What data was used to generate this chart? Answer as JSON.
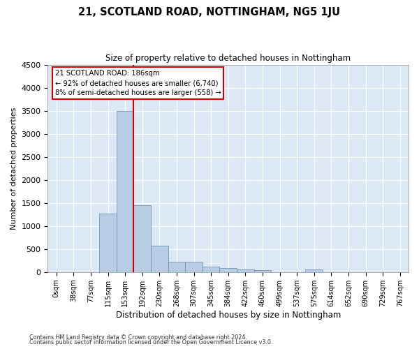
{
  "title": "21, SCOTLAND ROAD, NOTTINGHAM, NG5 1JU",
  "subtitle": "Size of property relative to detached houses in Nottingham",
  "xlabel": "Distribution of detached houses by size in Nottingham",
  "ylabel": "Number of detached properties",
  "categories": [
    "0sqm",
    "38sqm",
    "77sqm",
    "115sqm",
    "153sqm",
    "192sqm",
    "230sqm",
    "268sqm",
    "307sqm",
    "345sqm",
    "384sqm",
    "422sqm",
    "460sqm",
    "499sqm",
    "537sqm",
    "575sqm",
    "614sqm",
    "652sqm",
    "690sqm",
    "729sqm",
    "767sqm"
  ],
  "values": [
    0,
    0,
    0,
    1270,
    3500,
    1450,
    570,
    220,
    220,
    110,
    80,
    60,
    45,
    0,
    0,
    50,
    0,
    0,
    0,
    0,
    0
  ],
  "bar_color": "#b8cce4",
  "bar_edgecolor": "#5a8ab0",
  "vline_color": "#cc0000",
  "annotation_text_line1": "21 SCOTLAND ROAD: 186sqm",
  "annotation_text_line2": "← 92% of detached houses are smaller (6,740)",
  "annotation_text_line3": "8% of semi-detached houses are larger (558) →",
  "ylim": [
    0,
    4500
  ],
  "yticks": [
    0,
    500,
    1000,
    1500,
    2000,
    2500,
    3000,
    3500,
    4000,
    4500
  ],
  "background_color": "#dce9f5",
  "footer_line1": "Contains HM Land Registry data © Crown copyright and database right 2024.",
  "footer_line2": "Contains public sector information licensed under the Open Government Licence v3.0."
}
